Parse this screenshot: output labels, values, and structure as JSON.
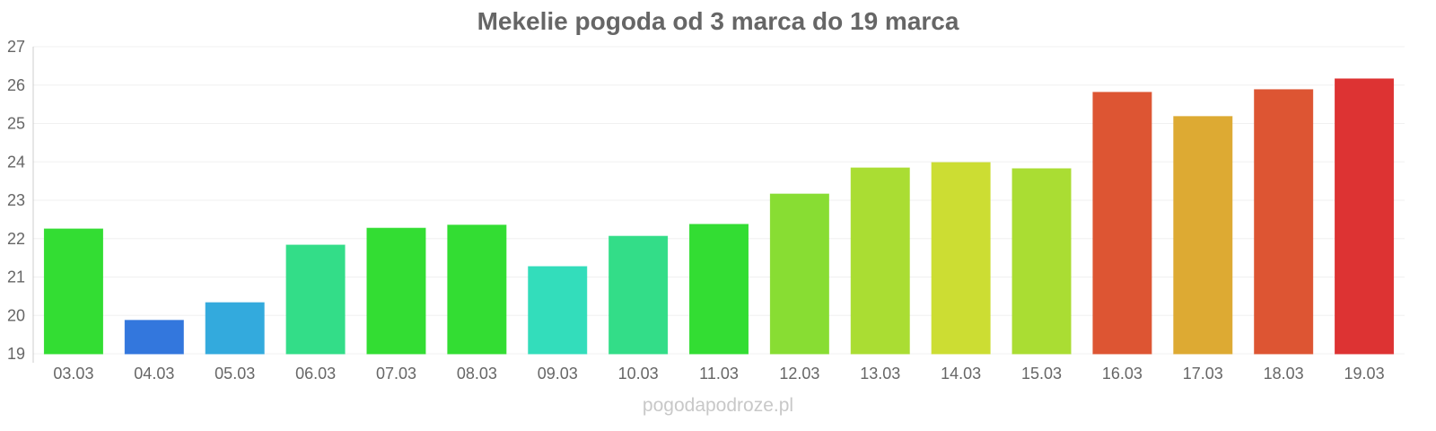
{
  "chart_data": {
    "type": "bar",
    "title": "Mekelie pogoda od 3 marca do 19 marca",
    "xlabel": "",
    "ylabel": "",
    "ylim": [
      19,
      27
    ],
    "yticks": [
      "19",
      "20",
      "21",
      "22",
      "23",
      "24",
      "25",
      "26",
      "27"
    ],
    "grid": true,
    "categories": [
      "03.03",
      "04.03",
      "05.03",
      "06.03",
      "07.03",
      "08.03",
      "09.03",
      "10.03",
      "11.03",
      "12.03",
      "13.03",
      "14.03",
      "15.03",
      "16.03",
      "17.03",
      "18.03",
      "19.03"
    ],
    "values": [
      22.25,
      19.87,
      20.33,
      21.83,
      22.27,
      22.35,
      21.27,
      22.06,
      22.37,
      23.16,
      23.84,
      23.98,
      23.82,
      25.81,
      25.18,
      25.88,
      26.16
    ],
    "colors": [
      "#33dd33",
      "#3377dd",
      "#33aadd",
      "#33dd88",
      "#33dd33",
      "#33dd33",
      "#33ddbb",
      "#33dd88",
      "#33dd33",
      "#88dd33",
      "#aadd33",
      "#ccdd33",
      "#aadd33",
      "#dd5533",
      "#ddaa33",
      "#dd5533",
      "#dd3333"
    ]
  },
  "watermark": "pogodapodroze.pl"
}
